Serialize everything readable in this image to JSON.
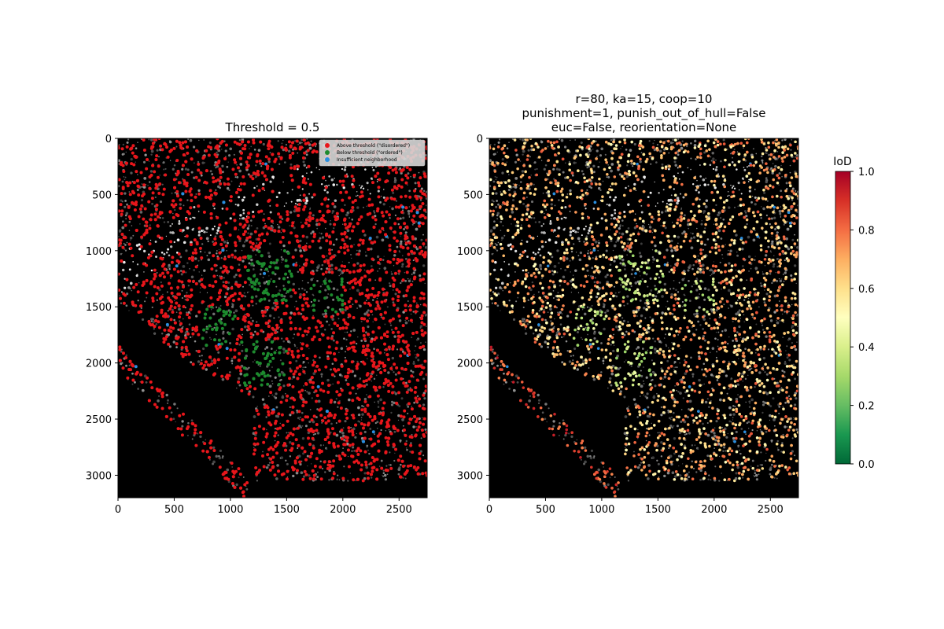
{
  "chart_data": [
    {
      "type": "scatter",
      "title": "Threshold = 0.5",
      "xlabel": "",
      "ylabel": "",
      "xlim": [
        0,
        2750
      ],
      "ylim": [
        3200,
        0
      ],
      "y_inverted": true,
      "x_ticks": [
        0,
        500,
        1000,
        1500,
        2000,
        2500
      ],
      "y_ticks": [
        0,
        500,
        1000,
        1500,
        2000,
        2500,
        3000
      ],
      "background": "dark grayscale microscopy image",
      "legend_position": "top-right",
      "series": [
        {
          "name": "Above threshold (\"disordered\")",
          "color": "#e8161b"
        },
        {
          "name": "Below threshold (\"ordered\")",
          "color": "#1d8a2e"
        },
        {
          "name": "Insufficient neighborhood",
          "color": "#2a8fe0"
        }
      ],
      "ordered_regions_approx": [
        {
          "x": [
            1150,
            1550
          ],
          "y": [
            1000,
            1450
          ]
        },
        {
          "x": [
            1700,
            2000
          ],
          "y": [
            1250,
            1550
          ]
        },
        {
          "x": [
            750,
            1050
          ],
          "y": [
            1500,
            1850
          ]
        },
        {
          "x": [
            1100,
            1500
          ],
          "y": [
            1800,
            2200
          ]
        }
      ]
    },
    {
      "type": "scatter",
      "title_lines": [
        "r=80, ka=15, coop=10",
        "punishment=1, punish_out_of_hull=False",
        "euc=False, reorientation=None"
      ],
      "xlabel": "",
      "ylabel": "",
      "xlim": [
        0,
        2750
      ],
      "ylim": [
        3200,
        0
      ],
      "y_inverted": true,
      "x_ticks": [
        0,
        500,
        1000,
        1500,
        2000,
        2500
      ],
      "y_ticks": [
        0,
        500,
        1000,
        1500,
        2000,
        2500,
        3000
      ],
      "color_by": "IoD",
      "colormap": "RdYlGn_r",
      "colorbar": {
        "label": "IoD",
        "range": [
          0.0,
          1.0
        ],
        "ticks": [
          "0.0",
          "0.2",
          "0.4",
          "0.6",
          "0.8",
          "1.0"
        ]
      }
    }
  ]
}
